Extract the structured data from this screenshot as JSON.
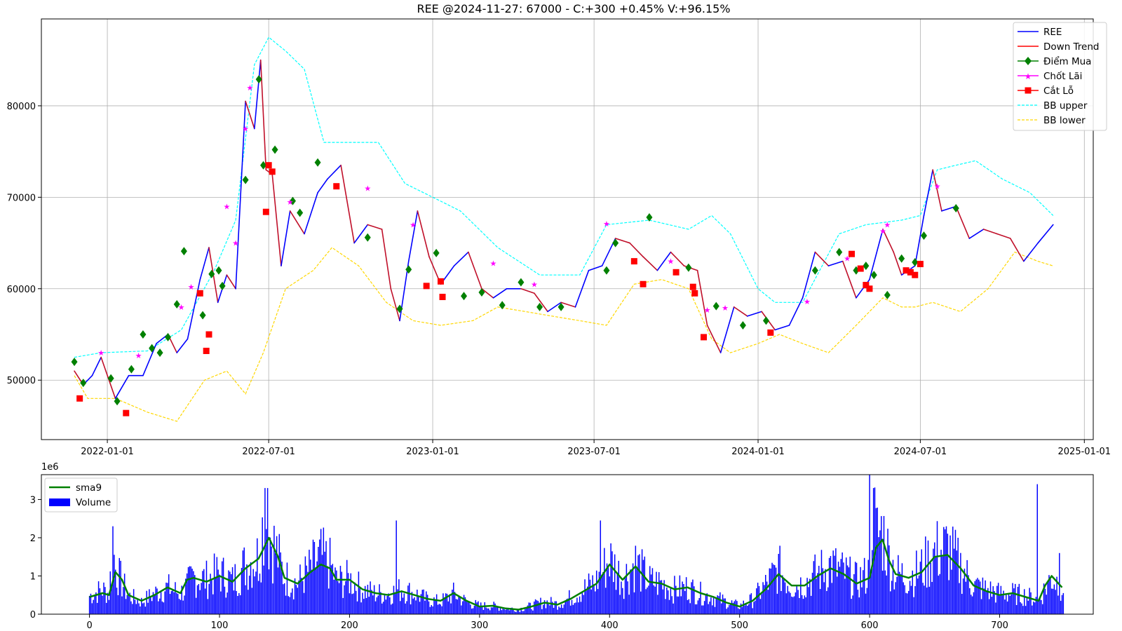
{
  "chart_data": [
    {
      "type": "line",
      "title": "REE @2024-11-27: 67000 - C:+300 +0.45% V:+96.15%",
      "xlabel": "",
      "ylabel": "",
      "x_ticks": [
        "2022-01-01",
        "2022-07-01",
        "2023-01-01",
        "2023-07-01",
        "2024-01-01",
        "2024-07-01",
        "2025-01-01"
      ],
      "y_ticks": [
        "50000",
        "60000",
        "70000",
        "80000"
      ],
      "ylim": [
        43500,
        89500
      ],
      "grid": true,
      "legend_position": "top-right",
      "legend": [
        "REE",
        "Down Trend",
        "Điểm Mua",
        "Chốt Lãi",
        "Cắt Lỗ",
        "BB upper",
        "BB lower"
      ],
      "colors": {
        "price": "#0000ff",
        "down_trend": "#ff0000",
        "buy": "#008000",
        "take_profit": "#ff00ff",
        "stop_loss": "#ff0000",
        "bb_upper": "#00ffff",
        "bb_lower": "#ffd700"
      },
      "series": [
        {
          "name": "REE",
          "x": [
            "2021-11-25",
            "2021-12-05",
            "2021-12-15",
            "2021-12-25",
            "2022-01-10",
            "2022-01-25",
            "2022-02-10",
            "2022-02-25",
            "2022-03-10",
            "2022-03-20",
            "2022-04-01",
            "2022-04-15",
            "2022-04-25",
            "2022-05-05",
            "2022-05-15",
            "2022-05-25",
            "2022-06-05",
            "2022-06-15",
            "2022-06-22",
            "2022-06-28",
            "2022-07-05",
            "2022-07-15",
            "2022-07-25",
            "2022-08-10",
            "2022-08-25",
            "2022-09-05",
            "2022-09-20",
            "2022-10-05",
            "2022-10-20",
            "2022-11-05",
            "2022-11-15",
            "2022-11-25",
            "2022-12-05",
            "2022-12-15",
            "2022-12-28",
            "2023-01-10",
            "2023-01-25",
            "2023-02-10",
            "2023-02-25",
            "2023-03-10",
            "2023-03-25",
            "2023-04-10",
            "2023-04-25",
            "2023-05-10",
            "2023-05-25",
            "2023-06-10",
            "2023-06-25",
            "2023-07-10",
            "2023-07-25",
            "2023-08-10",
            "2023-08-25",
            "2023-09-10",
            "2023-09-25",
            "2023-10-10",
            "2023-10-25",
            "2023-11-05",
            "2023-11-20",
            "2023-12-05",
            "2023-12-20",
            "2024-01-05",
            "2024-01-20",
            "2024-02-05",
            "2024-02-20",
            "2024-03-05",
            "2024-03-20",
            "2024-04-05",
            "2024-04-20",
            "2024-05-05",
            "2024-05-20",
            "2024-06-01",
            "2024-06-10",
            "2024-06-25",
            "2024-07-05",
            "2024-07-15",
            "2024-07-25",
            "2024-08-10",
            "2024-08-25",
            "2024-09-10",
            "2024-09-25",
            "2024-10-10",
            "2024-10-25",
            "2024-11-10",
            "2024-11-27"
          ],
          "y": [
            51000,
            49500,
            50500,
            52500,
            48000,
            50500,
            50500,
            54000,
            55000,
            53000,
            54500,
            61000,
            64500,
            58500,
            61500,
            60000,
            80500,
            77500,
            85000,
            73000,
            72500,
            62500,
            68500,
            66000,
            70500,
            72000,
            73500,
            65000,
            67000,
            66500,
            60000,
            56500,
            63000,
            68500,
            63500,
            60500,
            62500,
            64000,
            60000,
            59000,
            60000,
            60000,
            59500,
            57500,
            58500,
            58000,
            62000,
            62500,
            65500,
            65000,
            63500,
            62000,
            64000,
            62500,
            62000,
            56000,
            53000,
            58000,
            57000,
            57500,
            55500,
            56000,
            59000,
            64000,
            62500,
            63000,
            59000,
            61000,
            66500,
            64000,
            61500,
            62500,
            68000,
            73000,
            68500,
            69000,
            65500,
            66500,
            66000,
            65500,
            63000,
            65000,
            67000
          ]
        },
        {
          "name": "BB upper",
          "x": [
            "2021-11-25",
            "2021-12-25",
            "2022-02-15",
            "2022-03-25",
            "2022-05-01",
            "2022-05-25",
            "2022-06-15",
            "2022-07-01",
            "2022-07-20",
            "2022-08-10",
            "2022-09-01",
            "2022-10-01",
            "2022-11-01",
            "2022-12-01",
            "2023-01-01",
            "2023-02-01",
            "2023-03-15",
            "2023-05-01",
            "2023-06-15",
            "2023-07-15",
            "2023-09-01",
            "2023-10-15",
            "2023-11-10",
            "2023-12-01",
            "2024-01-01",
            "2024-01-20",
            "2024-02-20",
            "2024-04-01",
            "2024-05-01",
            "2024-06-10",
            "2024-07-01",
            "2024-07-20",
            "2024-08-10",
            "2024-09-01",
            "2024-10-01",
            "2024-11-01",
            "2024-11-27"
          ],
          "y": [
            52500,
            53000,
            53200,
            55500,
            62000,
            67500,
            84500,
            87500,
            86000,
            84000,
            76000,
            76000,
            76000,
            71500,
            70000,
            68500,
            64500,
            61500,
            61500,
            67000,
            67500,
            66500,
            68000,
            66000,
            60000,
            58500,
            58500,
            66000,
            67000,
            67500,
            68000,
            73000,
            73500,
            74000,
            72000,
            70500,
            68000
          ]
        },
        {
          "name": "BB lower",
          "x": [
            "2021-11-25",
            "2021-12-10",
            "2022-01-10",
            "2022-02-15",
            "2022-03-20",
            "2022-04-20",
            "2022-05-15",
            "2022-06-05",
            "2022-06-25",
            "2022-07-20",
            "2022-08-20",
            "2022-09-10",
            "2022-10-10",
            "2022-11-10",
            "2022-12-10",
            "2023-01-10",
            "2023-02-15",
            "2023-03-15",
            "2023-04-15",
            "2023-05-15",
            "2023-06-15",
            "2023-07-15",
            "2023-08-15",
            "2023-09-15",
            "2023-10-15",
            "2023-11-10",
            "2023-12-01",
            "2024-01-01",
            "2024-01-25",
            "2024-02-20",
            "2024-03-20",
            "2024-04-20",
            "2024-05-20",
            "2024-06-10",
            "2024-06-25",
            "2024-07-15",
            "2024-08-15",
            "2024-09-15",
            "2024-10-15",
            "2024-11-10",
            "2024-11-27"
          ],
          "y": [
            50500,
            48000,
            48000,
            46500,
            45500,
            50000,
            51000,
            48500,
            53000,
            60000,
            62000,
            64500,
            62500,
            58500,
            56500,
            56000,
            56500,
            58000,
            57500,
            57000,
            56500,
            56000,
            60500,
            61000,
            60000,
            54500,
            53000,
            54000,
            55000,
            54000,
            53000,
            56000,
            59000,
            58000,
            58000,
            58500,
            57500,
            60000,
            64000,
            63000,
            62500
          ]
        },
        {
          "name": "Điểm Mua",
          "x": [
            "2021-11-25",
            "2021-12-05",
            "2022-01-05",
            "2022-01-12",
            "2022-01-28",
            "2022-02-10",
            "2022-02-20",
            "2022-03-01",
            "2022-03-10",
            "2022-03-20",
            "2022-03-28",
            "2022-04-18",
            "2022-04-28",
            "2022-05-06",
            "2022-05-10",
            "2022-06-05",
            "2022-06-20",
            "2022-06-25",
            "2022-07-08",
            "2022-07-28",
            "2022-08-05",
            "2022-08-25",
            "2022-10-20",
            "2022-11-25",
            "2022-12-05",
            "2023-01-05",
            "2023-02-05",
            "2023-02-25",
            "2023-03-20",
            "2023-04-10",
            "2023-05-01",
            "2023-05-25",
            "2023-07-15",
            "2023-07-25",
            "2023-09-01",
            "2023-10-15",
            "2023-11-15",
            "2023-12-15",
            "2024-01-10",
            "2024-03-05",
            "2024-04-01",
            "2024-04-20",
            "2024-05-01",
            "2024-05-10",
            "2024-05-25",
            "2024-06-10",
            "2024-06-25",
            "2024-07-05",
            "2024-08-10"
          ],
          "y": [
            52000,
            49700,
            50200,
            47700,
            51200,
            55000,
            53500,
            53000,
            54700,
            58300,
            64100,
            57100,
            61600,
            62000,
            60300,
            71900,
            82900,
            73500,
            75200,
            69600,
            68300,
            73800,
            65600,
            57800,
            62100,
            63900,
            59200,
            59600,
            58200,
            60700,
            58000,
            58000,
            62000,
            65000,
            67800,
            62300,
            58100,
            56000,
            56500,
            62000,
            64000,
            62000,
            62500,
            61500,
            59300,
            63300,
            62900,
            65800,
            68800
          ]
        },
        {
          "name": "Chốt Lãi",
          "x": [
            "2021-12-25",
            "2022-02-05",
            "2022-03-25",
            "2022-04-05",
            "2022-05-15",
            "2022-05-25",
            "2022-06-05",
            "2022-06-10",
            "2022-07-25",
            "2022-10-20",
            "2022-12-10",
            "2023-03-10",
            "2023-04-25",
            "2023-07-15",
            "2023-09-25",
            "2023-11-05",
            "2023-11-25",
            "2024-02-25",
            "2024-04-10",
            "2024-05-20",
            "2024-05-25",
            "2024-06-20",
            "2024-07-20"
          ],
          "y": [
            53000,
            52700,
            58000,
            60200,
            69000,
            65000,
            77500,
            82000,
            69500,
            71000,
            67000,
            62800,
            60500,
            67100,
            63000,
            57700,
            57900,
            58600,
            63300,
            66300,
            67000,
            62000,
            71200
          ]
        },
        {
          "name": "Cắt Lỗ",
          "x": [
            "2021-12-01",
            "2022-01-22",
            "2022-04-15",
            "2022-04-22",
            "2022-04-25",
            "2022-06-28",
            "2022-07-01",
            "2022-07-05",
            "2022-09-15",
            "2022-12-25",
            "2023-01-10",
            "2023-01-12",
            "2023-08-15",
            "2023-08-25",
            "2023-10-01",
            "2023-10-20",
            "2023-10-22",
            "2023-11-01",
            "2024-01-15",
            "2024-04-15",
            "2024-04-25",
            "2024-05-01",
            "2024-05-05",
            "2024-06-15",
            "2024-06-20",
            "2024-06-25",
            "2024-07-01"
          ],
          "y": [
            48000,
            46400,
            59500,
            53200,
            55000,
            68400,
            73500,
            72800,
            71200,
            60300,
            60800,
            59100,
            63000,
            60500,
            61800,
            60200,
            59500,
            54700,
            55200,
            63800,
            62200,
            60400,
            60000,
            62000,
            61800,
            61500,
            62700
          ]
        }
      ]
    },
    {
      "type": "bar",
      "title": "",
      "xlabel": "",
      "ylabel": "",
      "scale_label": "1e6",
      "x_ticks": [
        "0",
        "100",
        "200",
        "300",
        "400",
        "500",
        "600",
        "700"
      ],
      "y_ticks": [
        "0",
        "1",
        "2",
        "3"
      ],
      "xlim": [
        -37,
        772
      ],
      "ylim": [
        0,
        3.65
      ],
      "legend_position": "top-left",
      "legend": [
        "sma9",
        "Volume"
      ],
      "colors": {
        "volume": "#0000ff",
        "sma9": "#008000"
      },
      "sma9": {
        "x": [
          0,
          10,
          15,
          20,
          25,
          30,
          40,
          50,
          60,
          70,
          75,
          80,
          90,
          100,
          110,
          120,
          130,
          138,
          145,
          150,
          160,
          170,
          178,
          185,
          190,
          200,
          210,
          220,
          230,
          240,
          250,
          260,
          270,
          280,
          290,
          300,
          310,
          320,
          330,
          340,
          350,
          360,
          370,
          380,
          390,
          400,
          410,
          420,
          430,
          440,
          450,
          460,
          470,
          480,
          490,
          500,
          510,
          520,
          530,
          540,
          550,
          560,
          570,
          580,
          590,
          600,
          605,
          610,
          615,
          620,
          630,
          640,
          650,
          660,
          670,
          680,
          690,
          700,
          710,
          720,
          730,
          735,
          740,
          748
        ],
        "y": [
          0.45,
          0.55,
          0.5,
          1.1,
          0.9,
          0.5,
          0.35,
          0.5,
          0.7,
          0.55,
          0.9,
          0.95,
          0.85,
          1.0,
          0.85,
          1.2,
          1.45,
          2.0,
          1.5,
          0.95,
          0.8,
          1.1,
          1.3,
          1.2,
          0.9,
          0.9,
          0.65,
          0.55,
          0.5,
          0.6,
          0.5,
          0.4,
          0.35,
          0.55,
          0.35,
          0.2,
          0.22,
          0.15,
          0.12,
          0.2,
          0.3,
          0.25,
          0.4,
          0.6,
          0.8,
          1.3,
          0.9,
          1.25,
          0.85,
          0.8,
          0.65,
          0.7,
          0.55,
          0.45,
          0.3,
          0.2,
          0.35,
          0.65,
          1.05,
          0.75,
          0.75,
          1.0,
          1.2,
          1.05,
          0.8,
          0.95,
          1.75,
          1.95,
          1.4,
          1.05,
          0.95,
          1.1,
          1.5,
          1.55,
          1.2,
          0.75,
          0.6,
          0.5,
          0.55,
          0.45,
          0.35,
          0.75,
          1.0,
          0.7
        ]
      },
      "volume_profile": {
        "x": [
          0,
          10,
          15,
          18,
          20,
          30,
          40,
          50,
          60,
          70,
          80,
          90,
          100,
          110,
          120,
          130,
          135,
          138,
          145,
          150,
          160,
          170,
          178,
          185,
          190,
          200,
          210,
          220,
          230,
          240,
          250,
          260,
          270,
          280,
          290,
          300,
          310,
          320,
          330,
          340,
          350,
          360,
          370,
          380,
          390,
          400,
          410,
          420,
          430,
          440,
          450,
          460,
          470,
          480,
          490,
          500,
          510,
          520,
          530,
          540,
          550,
          560,
          570,
          580,
          590,
          600,
          602,
          605,
          610,
          615,
          620,
          630,
          640,
          650,
          660,
          670,
          680,
          690,
          700,
          710,
          720,
          730,
          740,
          748
        ],
        "y": [
          0.45,
          0.6,
          0.5,
          1.6,
          1.1,
          0.45,
          0.3,
          0.5,
          0.65,
          0.5,
          0.9,
          0.85,
          1.0,
          0.8,
          1.2,
          1.4,
          2.5,
          2.0,
          1.4,
          0.9,
          0.75,
          1.1,
          1.4,
          1.2,
          0.8,
          0.85,
          0.6,
          0.5,
          0.5,
          0.6,
          0.5,
          0.35,
          0.3,
          0.5,
          0.3,
          0.2,
          0.2,
          0.15,
          0.12,
          0.2,
          0.3,
          0.25,
          0.4,
          0.6,
          0.8,
          1.35,
          0.85,
          1.25,
          0.8,
          0.75,
          0.6,
          0.65,
          0.5,
          0.4,
          0.3,
          0.2,
          0.35,
          0.7,
          1.1,
          0.7,
          0.75,
          1.0,
          1.2,
          1.0,
          0.8,
          1.0,
          2.8,
          1.9,
          2.0,
          1.4,
          1.0,
          0.9,
          1.1,
          1.5,
          1.6,
          1.15,
          0.7,
          0.6,
          0.5,
          0.5,
          0.45,
          0.35,
          0.9,
          0.7
        ]
      },
      "volume_spikes": [
        {
          "x": 18,
          "v": 2.3
        },
        {
          "x": 135,
          "v": 3.3
        },
        {
          "x": 137,
          "v": 3.3
        },
        {
          "x": 236,
          "v": 2.45
        },
        {
          "x": 393,
          "v": 2.45
        },
        {
          "x": 600,
          "v": 3.65
        },
        {
          "x": 603,
          "v": 3.3
        },
        {
          "x": 729,
          "v": 3.4
        },
        {
          "x": 746,
          "v": 1.6
        }
      ],
      "bar_count": 750
    }
  ]
}
